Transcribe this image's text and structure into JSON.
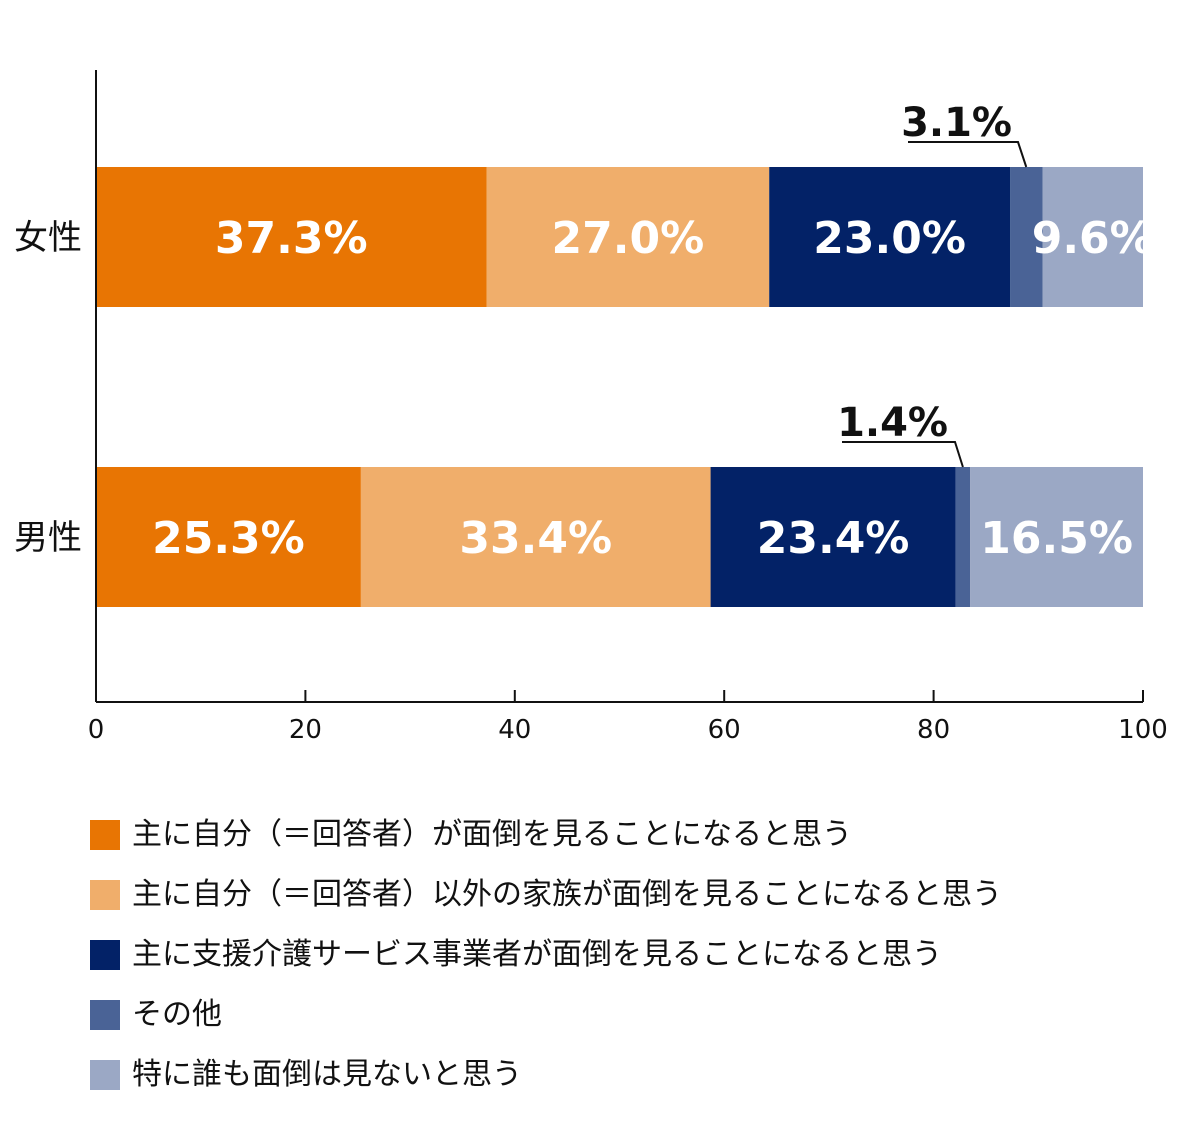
{
  "chart_data": {
    "type": "bar",
    "orientation": "horizontal",
    "stacked": true,
    "title": "",
    "xlabel": "",
    "ylabel": "",
    "xlim": [
      0,
      100
    ],
    "x_ticks": [
      "0",
      "20",
      "40",
      "60",
      "80",
      "100"
    ],
    "categories": [
      "女性",
      "男性"
    ],
    "series": [
      {
        "name": "主に自分（＝回答者）が面倒を見ることになると思う",
        "color": "#E87503",
        "values": [
          37.3,
          25.3
        ],
        "labels": [
          "37.3%",
          "25.3%"
        ]
      },
      {
        "name": "主に自分（＝回答者）以外の家族が面倒を見ることになると思う",
        "color": "#F0AE6B",
        "values": [
          27.0,
          33.4
        ],
        "labels": [
          "27.0%",
          "33.4%"
        ]
      },
      {
        "name": "主に支援介護サービス事業者が面倒を見ることになると思う",
        "color": "#032267",
        "values": [
          23.0,
          23.4
        ],
        "labels": [
          "23.0%",
          "23.4%"
        ]
      },
      {
        "name": "その他",
        "color": "#4A6396",
        "values": [
          3.1,
          1.4
        ],
        "labels": [
          "3.1%",
          "1.4%"
        ]
      },
      {
        "name": "特に誰も面倒は見ないと思う",
        "color": "#9BA8C5",
        "values": [
          9.6,
          16.5
        ],
        "labels": [
          "9.6%",
          "16.5%"
        ]
      }
    ],
    "grid": false,
    "legend_position": "bottom"
  }
}
